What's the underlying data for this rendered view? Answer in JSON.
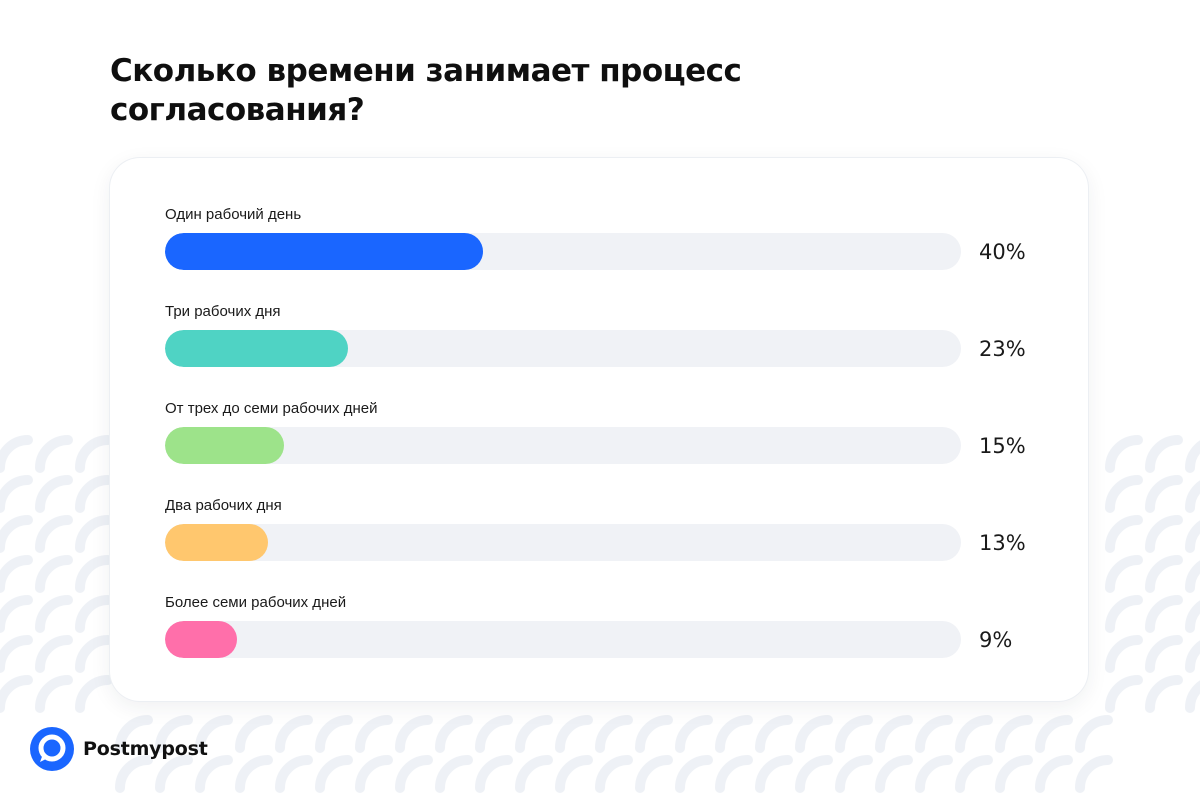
{
  "brand": {
    "name": "Postmypost",
    "accent": "#1A66FF"
  },
  "chart_data": {
    "type": "bar",
    "orientation": "horizontal",
    "title": "Сколько времени занимает процесс согласования?",
    "categories": [
      "Один рабочий день",
      "Три рабочих дня",
      "От трех до семи рабочих дней",
      "Два рабочих дня",
      "Более семи рабочих дней"
    ],
    "values": [
      40,
      23,
      15,
      13,
      9
    ],
    "value_labels": [
      "40%",
      "23%",
      "15%",
      "13%",
      "9%"
    ],
    "colors": [
      "#1A66FF",
      "#4FD3C4",
      "#9DE38A",
      "#FFC76E",
      "#FF6FAA"
    ],
    "xlim": [
      0,
      100
    ],
    "unit": "%",
    "grid": false,
    "legend": "none"
  }
}
